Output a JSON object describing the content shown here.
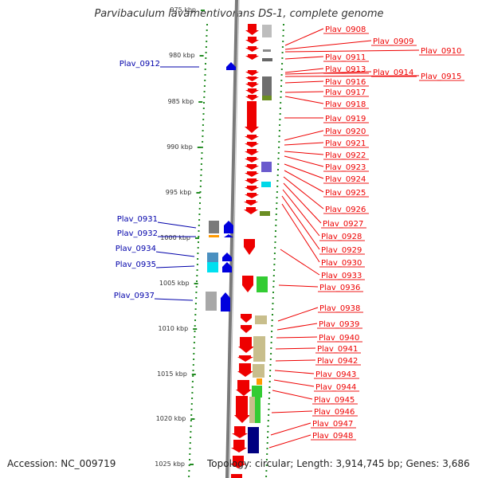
{
  "title": "Parvibaculum lavamentivorans DS-1, complete genome",
  "footer": {
    "accession": "Accession: NC_009719",
    "topology": "Topology: circular; Length: 3,914,745 bp; Genes: 3,686"
  },
  "colors": {
    "forward_gene": "#ee0000",
    "reverse_gene": "#0000dd",
    "right_label": "#ee0000",
    "left_label": "#0000aa",
    "gc_dots": "#228b22",
    "backbone": "#777777"
  },
  "kbp_ticks": [
    "975 kbp",
    "980 kbp",
    "985 kbp",
    "990 kbp",
    "995 kbp",
    "1000 kbp",
    "1005 kbp",
    "1010 kbp",
    "1015 kbp",
    "1020 kbp",
    "1025 kbp"
  ],
  "right_labels": [
    "Plav_0908",
    "Plav_0909",
    "Plav_0910",
    "Plav_0911",
    "Plav_0913",
    "Plav_0914",
    "Plav_0915",
    "Plav_0916",
    "Plav_0917",
    "Plav_0918",
    "Plav_0919",
    "Plav_0920",
    "Plav_0921",
    "Plav_0922",
    "Plav_0923",
    "Plav_0924",
    "Plav_0925",
    "Plav_0926",
    "Plav_0927",
    "Plav_0928",
    "Plav_0929",
    "Plav_0930",
    "Plav_0933",
    "Plav_0936",
    "Plav_0938",
    "Plav_0939",
    "Plav_0940",
    "Plav_0941",
    "Plav_0942",
    "Plav_0943",
    "Plav_0944",
    "Plav_0945",
    "Plav_0946",
    "Plav_0947",
    "Plav_0948"
  ],
  "left_labels": [
    "Plav_0912",
    "Plav_0931",
    "Plav_0932",
    "Plav_0934",
    "Plav_0935",
    "Plav_0937"
  ]
}
